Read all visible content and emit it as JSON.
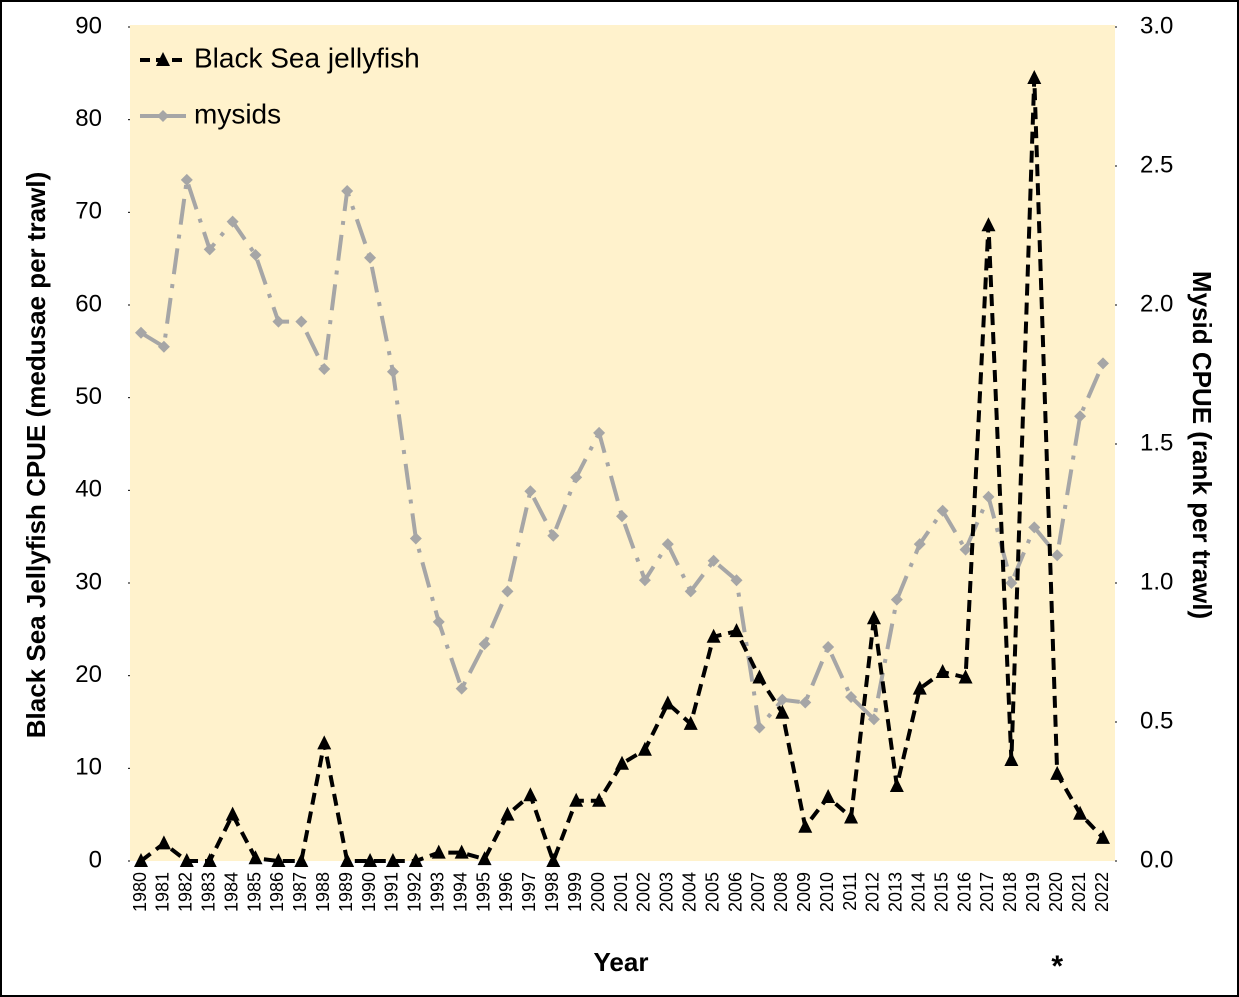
{
  "chart_data": {
    "type": "line",
    "x_label": "Year",
    "y_label": "Black Sea Jellyfish CPUE (medusae per trawl)",
    "y2_label": "Mysid CPUE (rank per trawl)",
    "annotation": "*",
    "annotation_category": "2020",
    "categories": [
      "1980",
      "1981",
      "1982",
      "1983",
      "1984",
      "1985",
      "1986",
      "1987",
      "1988",
      "1989",
      "1990",
      "1991",
      "1992",
      "1993",
      "1994",
      "1995",
      "1996",
      "1997",
      "1998",
      "1999",
      "2000",
      "2001",
      "2002",
      "2003",
      "2004",
      "2005",
      "2006",
      "2007",
      "2008",
      "2009",
      "2010",
      "2011",
      "2012",
      "2013",
      "2014",
      "2015",
      "2016",
      "2017",
      "2018",
      "2019",
      "2020",
      "2021",
      "2022"
    ],
    "series": [
      {
        "name": "Black Sea jellyfish",
        "color": "#000000",
        "marker": "triangle",
        "dash": "12 7",
        "values": [
          0,
          1.9,
          0,
          0,
          5,
          0.3,
          0,
          0,
          12.7,
          0,
          0,
          0,
          0,
          0.9,
          0.9,
          0.2,
          5,
          7.1,
          0,
          6.5,
          6.5,
          10.5,
          12,
          17,
          14.8,
          24.2,
          24.8,
          19.8,
          16,
          3.7,
          6.9,
          4.7,
          26.2,
          8.1,
          18.6,
          20.4,
          19.8,
          68.6,
          10.9,
          84.5,
          9.4,
          5.1,
          2.5
        ]
      },
      {
        "name": "mysids",
        "color": "#a6a6a6",
        "marker": "diamond",
        "dash": "26 10 4 10",
        "axis": "y2",
        "values": [
          1.9,
          1.85,
          2.45,
          2.2,
          2.3,
          2.18,
          1.94,
          1.94,
          1.77,
          2.41,
          2.17,
          1.76,
          1.16,
          0.86,
          0.62,
          0.78,
          0.97,
          1.33,
          1.17,
          1.38,
          1.54,
          1.24,
          1.01,
          1.14,
          0.97,
          1.08,
          1.01,
          0.48,
          0.58,
          0.57,
          0.77,
          0.59,
          0.51,
          0.94,
          1.14,
          1.26,
          1.12,
          1.31,
          1.0,
          1.2,
          1.1,
          1.6,
          1.79
        ]
      }
    ],
    "ylim": [
      0,
      90
    ],
    "yticks": [
      0,
      10,
      20,
      30,
      40,
      50,
      60,
      70,
      80,
      90
    ],
    "y2lim": [
      0,
      3
    ],
    "y2ticks": [
      {
        "value": 0,
        "label": "0.0"
      },
      0.5,
      {
        "value": 1,
        "label": "1.0"
      },
      1.5,
      {
        "value": 2,
        "label": "2.0"
      },
      2.5,
      {
        "value": 3,
        "label": "3.0"
      }
    ],
    "background": "#fff2cc",
    "legend": "top-left"
  }
}
